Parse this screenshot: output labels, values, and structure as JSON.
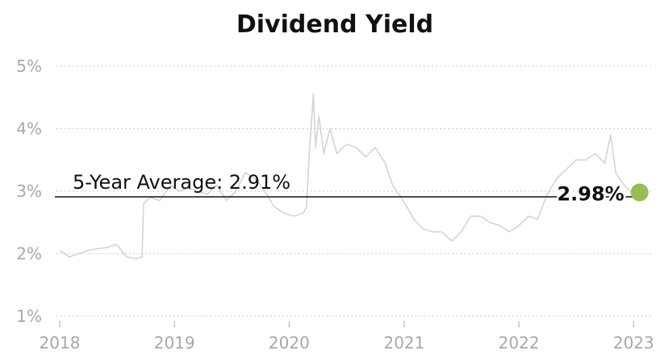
{
  "chart_data": {
    "type": "line",
    "title": "Dividend Yield",
    "xlabel": "",
    "ylabel": "",
    "x_ticks": [
      "2018",
      "2019",
      "2020",
      "2021",
      "2022",
      "2023"
    ],
    "y_ticks": [
      "1%",
      "2%",
      "3%",
      "4%",
      "5%"
    ],
    "xlim": [
      "2018-01-01",
      "2023-01-31"
    ],
    "ylim": [
      1,
      5
    ],
    "grid": "horizontal dotted",
    "average": {
      "label": "5-Year Average: 2.91%",
      "value": 2.91
    },
    "current": {
      "label": "2.98%",
      "value": 2.98,
      "date": "2023-01-20"
    },
    "series": [
      {
        "points": [
          [
            "2018-01-01",
            2.05
          ],
          [
            "2018-02-01",
            1.95
          ],
          [
            "2018-03-01",
            2.0
          ],
          [
            "2018-04-01",
            2.05
          ],
          [
            "2018-05-01",
            2.08
          ],
          [
            "2018-06-01",
            2.1
          ],
          [
            "2018-07-01",
            2.15
          ],
          [
            "2018-08-01",
            1.95
          ],
          [
            "2018-09-01",
            1.92
          ],
          [
            "2018-09-20",
            1.95
          ],
          [
            "2018-09-25",
            2.8
          ],
          [
            "2018-10-15",
            2.9
          ],
          [
            "2018-11-15",
            2.85
          ],
          [
            "2018-12-20",
            3.1
          ],
          [
            "2019-01-15",
            3.0
          ],
          [
            "2019-02-15",
            3.05
          ],
          [
            "2019-03-15",
            3.0
          ],
          [
            "2019-04-15",
            2.95
          ],
          [
            "2019-05-15",
            3.1
          ],
          [
            "2019-06-15",
            2.85
          ],
          [
            "2019-07-15",
            3.0
          ],
          [
            "2019-08-15",
            3.3
          ],
          [
            "2019-09-15",
            3.2
          ],
          [
            "2019-10-15",
            3.0
          ],
          [
            "2019-11-15",
            2.75
          ],
          [
            "2019-12-15",
            2.65
          ],
          [
            "2020-01-15",
            2.6
          ],
          [
            "2020-02-15",
            2.65
          ],
          [
            "2020-02-25",
            2.75
          ],
          [
            "2020-03-05",
            3.6
          ],
          [
            "2020-03-12",
            4.1
          ],
          [
            "2020-03-18",
            4.55
          ],
          [
            "2020-03-25",
            3.7
          ],
          [
            "2020-04-05",
            4.2
          ],
          [
            "2020-04-20",
            3.6
          ],
          [
            "2020-05-10",
            4.0
          ],
          [
            "2020-06-01",
            3.6
          ],
          [
            "2020-07-01",
            3.75
          ],
          [
            "2020-08-01",
            3.7
          ],
          [
            "2020-09-01",
            3.55
          ],
          [
            "2020-10-01",
            3.7
          ],
          [
            "2020-11-01",
            3.45
          ],
          [
            "2020-11-25",
            3.1
          ],
          [
            "2020-12-15",
            2.95
          ],
          [
            "2021-01-10",
            2.75
          ],
          [
            "2021-02-01",
            2.55
          ],
          [
            "2021-03-01",
            2.4
          ],
          [
            "2021-04-01",
            2.35
          ],
          [
            "2021-05-01",
            2.35
          ],
          [
            "2021-06-01",
            2.2
          ],
          [
            "2021-07-01",
            2.35
          ],
          [
            "2021-08-01",
            2.6
          ],
          [
            "2021-09-01",
            2.6
          ],
          [
            "2021-10-01",
            2.5
          ],
          [
            "2021-11-01",
            2.45
          ],
          [
            "2021-12-01",
            2.35
          ],
          [
            "2022-01-01",
            2.45
          ],
          [
            "2022-02-01",
            2.6
          ],
          [
            "2022-03-01",
            2.55
          ],
          [
            "2022-04-01",
            2.95
          ],
          [
            "2022-05-01",
            3.2
          ],
          [
            "2022-06-01",
            3.35
          ],
          [
            "2022-07-01",
            3.5
          ],
          [
            "2022-08-01",
            3.5
          ],
          [
            "2022-09-01",
            3.6
          ],
          [
            "2022-10-01",
            3.45
          ],
          [
            "2022-10-20",
            3.9
          ],
          [
            "2022-11-05",
            3.3
          ],
          [
            "2022-12-01",
            3.1
          ],
          [
            "2023-01-01",
            2.95
          ],
          [
            "2023-01-20",
            2.98
          ]
        ]
      }
    ]
  },
  "colors": {
    "line": "#d4d4d4",
    "average_line": "#111111",
    "marker": "#9dbb54",
    "ticks": "#a8a8a8",
    "grid": "#cfcfcf"
  }
}
